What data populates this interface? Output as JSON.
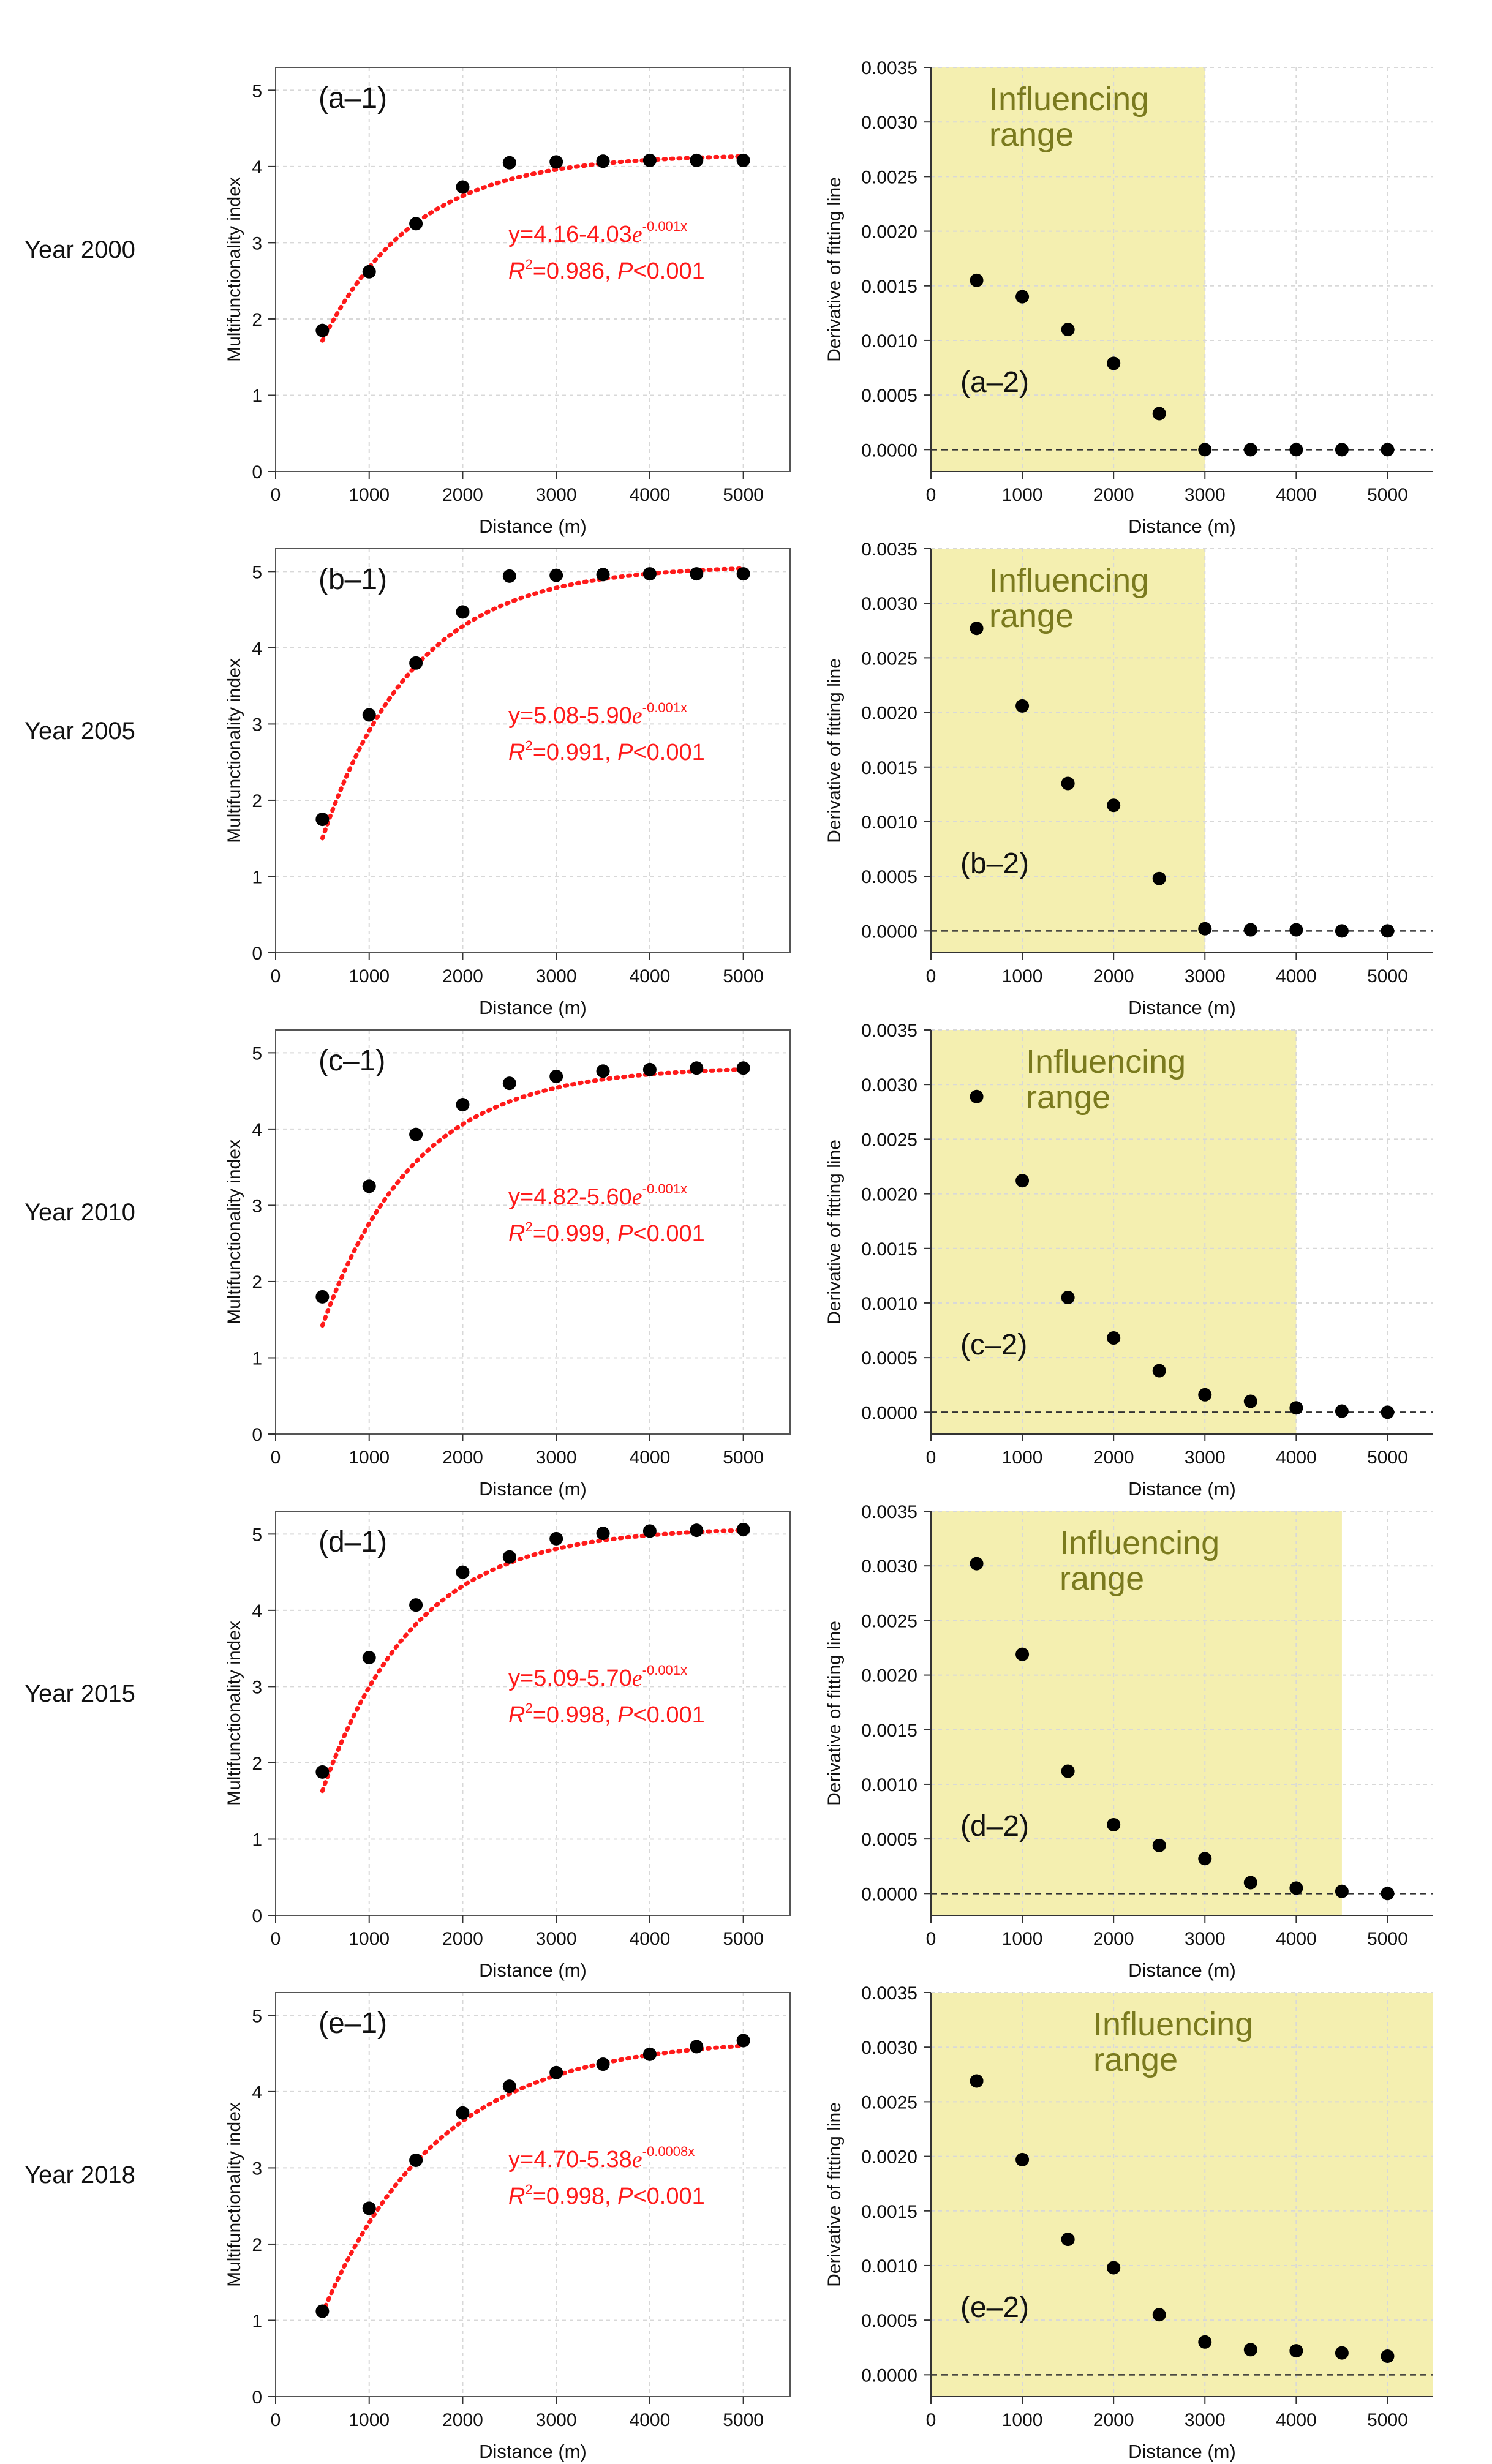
{
  "figure": {
    "x_ticks": [
      "0",
      "1000",
      "2000",
      "3000",
      "4000",
      "5000"
    ],
    "x_label": "Distance (m)",
    "left_y_label": "Multifunctionality index",
    "left_y_ticks": [
      "0",
      "1",
      "2",
      "3",
      "4",
      "5"
    ],
    "right_y_label": "Derivative of fitting line",
    "right_y_ticks": [
      "0.0000",
      "0.0005",
      "0.0010",
      "0.0015",
      "0.0020",
      "0.0025",
      "0.0030",
      "0.0035"
    ],
    "range_label_line1": "Influencing",
    "range_label_line2": "range",
    "colors": {
      "fit": "#ff1a1a",
      "points": "#000000",
      "range_fill": "#f4efb0",
      "range_text": "#7a7a1e",
      "grid": "#d8d8d8"
    }
  },
  "rows": [
    {
      "year_label": "Year 2000",
      "left_panel": "(a–1)",
      "right_panel": "(a–2)",
      "eq_a": "y=4.16-4.03",
      "eq_e": "e",
      "eq_exp": "-0.001x",
      "r2_r": "R",
      "r2_sup": "2",
      "r2_val": "=0.986, ",
      "r2_p": "P",
      "r2_pval": "<0.001"
    },
    {
      "year_label": "Year 2005",
      "left_panel": "(b–1)",
      "right_panel": "(b–2)",
      "eq_a": "y=5.08-5.90",
      "eq_e": "e",
      "eq_exp": "-0.001x",
      "r2_r": "R",
      "r2_sup": "2",
      "r2_val": "=0.991, ",
      "r2_p": "P",
      "r2_pval": "<0.001"
    },
    {
      "year_label": "Year 2010",
      "left_panel": "(c–1)",
      "right_panel": "(c–2)",
      "eq_a": "y=4.82-5.60",
      "eq_e": "e",
      "eq_exp": "-0.001x",
      "r2_r": "R",
      "r2_sup": "2",
      "r2_val": "=0.999, ",
      "r2_p": "P",
      "r2_pval": "<0.001"
    },
    {
      "year_label": "Year 2015",
      "left_panel": "(d–1)",
      "right_panel": "(d–2)",
      "eq_a": "y=5.09-5.70",
      "eq_e": "e",
      "eq_exp": "-0.001x",
      "r2_r": "R",
      "r2_sup": "2",
      "r2_val": "=0.998, ",
      "r2_p": "P",
      "r2_pval": "<0.001"
    },
    {
      "year_label": "Year 2018",
      "left_panel": "(e–1)",
      "right_panel": "(e–2)",
      "eq_a": "y=4.70-5.38",
      "eq_e": "e",
      "eq_exp": "-0.0008x",
      "r2_r": "R",
      "r2_sup": "2",
      "r2_val": "=0.998, ",
      "r2_p": "P",
      "r2_pval": "<0.001"
    }
  ],
  "chart_data": [
    {
      "type": "scatter",
      "title": "(a–1) Year 2000",
      "xlabel": "Distance (m)",
      "ylabel": "Multifunctionality index",
      "xlim": [
        0,
        5500
      ],
      "ylim": [
        0,
        5.3
      ],
      "x": [
        500,
        1000,
        1500,
        2000,
        2500,
        3000,
        3500,
        4000,
        4500,
        5000
      ],
      "y": [
        1.85,
        2.62,
        3.25,
        3.73,
        4.05,
        4.06,
        4.07,
        4.08,
        4.08,
        4.08
      ],
      "fit": {
        "a": 4.16,
        "b": 4.03,
        "k": 0.001
      }
    },
    {
      "type": "scatter",
      "title": "(a–2) Year 2000",
      "xlabel": "Distance (m)",
      "ylabel": "Derivative of fitting line",
      "xlim": [
        0,
        5500
      ],
      "ylim": [
        -0.0002,
        0.0035
      ],
      "influencing_range": [
        0,
        3000
      ],
      "x": [
        500,
        1000,
        1500,
        2000,
        2500,
        3000,
        3500,
        4000,
        4500,
        5000
      ],
      "y": [
        0.00155,
        0.0014,
        0.0011,
        0.00079,
        0.00033,
        0.0,
        0.0,
        0.0,
        0.0,
        0.0
      ]
    },
    {
      "type": "scatter",
      "title": "(b–1) Year 2005",
      "xlabel": "Distance (m)",
      "ylabel": "Multifunctionality index",
      "xlim": [
        0,
        5500
      ],
      "ylim": [
        0,
        5.3
      ],
      "x": [
        500,
        1000,
        1500,
        2000,
        2500,
        3000,
        3500,
        4000,
        4500,
        5000
      ],
      "y": [
        1.75,
        3.12,
        3.8,
        4.47,
        4.94,
        4.95,
        4.96,
        4.97,
        4.97,
        4.97
      ],
      "fit": {
        "a": 5.08,
        "b": 5.9,
        "k": 0.001
      }
    },
    {
      "type": "scatter",
      "title": "(b–2) Year 2005",
      "xlabel": "Distance (m)",
      "ylabel": "Derivative of fitting line",
      "xlim": [
        0,
        5500
      ],
      "ylim": [
        -0.0002,
        0.0035
      ],
      "influencing_range": [
        0,
        3000
      ],
      "x": [
        500,
        1000,
        1500,
        2000,
        2500,
        3000,
        3500,
        4000,
        4500,
        5000
      ],
      "y": [
        0.00277,
        0.00206,
        0.00135,
        0.00115,
        0.00048,
        2e-05,
        1e-05,
        1e-05,
        0.0,
        0.0
      ]
    },
    {
      "type": "scatter",
      "title": "(c–1) Year 2010",
      "xlabel": "Distance (m)",
      "ylabel": "Multifunctionality index",
      "xlim": [
        0,
        5500
      ],
      "ylim": [
        0,
        5.3
      ],
      "x": [
        500,
        1000,
        1500,
        2000,
        2500,
        3000,
        3500,
        4000,
        4500,
        5000
      ],
      "y": [
        1.8,
        3.25,
        3.93,
        4.32,
        4.6,
        4.69,
        4.76,
        4.78,
        4.8,
        4.8
      ],
      "fit": {
        "a": 4.82,
        "b": 5.6,
        "k": 0.001
      }
    },
    {
      "type": "scatter",
      "title": "(c–2) Year 2010",
      "xlabel": "Distance (m)",
      "ylabel": "Derivative of fitting line",
      "xlim": [
        0,
        5500
      ],
      "ylim": [
        -0.0002,
        0.0035
      ],
      "influencing_range": [
        0,
        4000
      ],
      "x": [
        500,
        1000,
        1500,
        2000,
        2500,
        3000,
        3500,
        4000,
        4500,
        5000
      ],
      "y": [
        0.00289,
        0.00212,
        0.00105,
        0.00068,
        0.00038,
        0.00016,
        0.0001,
        4e-05,
        1e-05,
        0.0
      ]
    },
    {
      "type": "scatter",
      "title": "(d–1) Year 2015",
      "xlabel": "Distance (m)",
      "ylabel": "Multifunctionality index",
      "xlim": [
        0,
        5500
      ],
      "ylim": [
        0,
        5.3
      ],
      "x": [
        500,
        1000,
        1500,
        2000,
        2500,
        3000,
        3500,
        4000,
        4500,
        5000
      ],
      "y": [
        1.88,
        3.38,
        4.07,
        4.5,
        4.7,
        4.94,
        5.01,
        5.04,
        5.05,
        5.06
      ],
      "fit": {
        "a": 5.09,
        "b": 5.7,
        "k": 0.001
      }
    },
    {
      "type": "scatter",
      "title": "(d–2) Year 2015",
      "xlabel": "Distance (m)",
      "ylabel": "Derivative of fitting line",
      "xlim": [
        0,
        5500
      ],
      "ylim": [
        -0.0002,
        0.0035
      ],
      "influencing_range": [
        0,
        4500
      ],
      "x": [
        500,
        1000,
        1500,
        2000,
        2500,
        3000,
        3500,
        4000,
        4500,
        5000
      ],
      "y": [
        0.00302,
        0.00219,
        0.00112,
        0.00063,
        0.00044,
        0.00032,
        0.0001,
        5e-05,
        2e-05,
        0.0
      ]
    },
    {
      "type": "scatter",
      "title": "(e–1) Year 2018",
      "xlabel": "Distance (m)",
      "ylabel": "Multifunctionality index",
      "xlim": [
        0,
        5500
      ],
      "ylim": [
        0,
        5.3
      ],
      "x": [
        500,
        1000,
        1500,
        2000,
        2500,
        3000,
        3500,
        4000,
        4500,
        5000
      ],
      "y": [
        1.12,
        2.47,
        3.1,
        3.72,
        4.07,
        4.25,
        4.36,
        4.49,
        4.59,
        4.67
      ],
      "fit": {
        "a": 4.7,
        "b": 5.38,
        "k": 0.0008
      }
    },
    {
      "type": "scatter",
      "title": "(e–2) Year 2018",
      "xlabel": "Distance (m)",
      "ylabel": "Derivative of fitting line",
      "xlim": [
        0,
        5500
      ],
      "ylim": [
        -0.0002,
        0.0035
      ],
      "influencing_range": [
        0,
        5500
      ],
      "x": [
        500,
        1000,
        1500,
        2000,
        2500,
        3000,
        3500,
        4000,
        4500,
        5000
      ],
      "y": [
        0.00269,
        0.00197,
        0.00124,
        0.00098,
        0.00055,
        0.0003,
        0.00023,
        0.00022,
        0.0002,
        0.00017
      ]
    }
  ]
}
